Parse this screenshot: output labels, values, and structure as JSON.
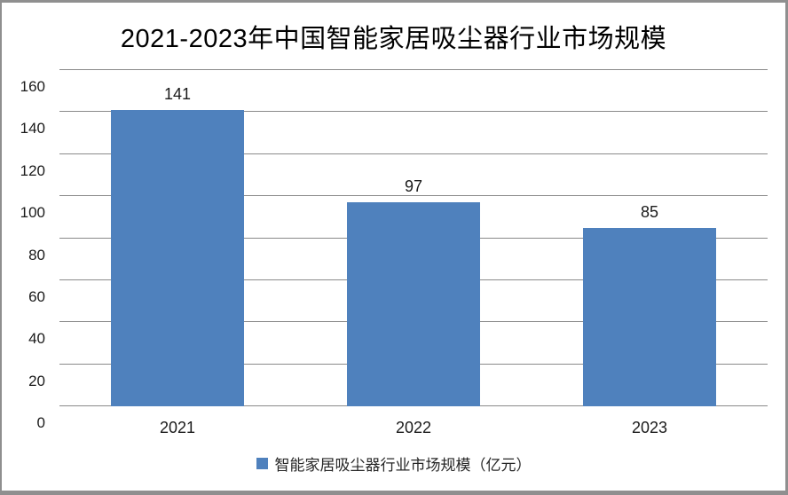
{
  "chart_data": {
    "type": "bar",
    "title": "2021-2023年中国智能家居吸尘器行业市场规模",
    "categories": [
      "2021",
      "2022",
      "2023"
    ],
    "series": [
      {
        "name": "智能家居吸尘器行业市场规模（亿元）",
        "values": [
          141,
          97,
          85
        ]
      }
    ],
    "xlabel": "",
    "ylabel": "",
    "ylim": [
      0,
      160
    ],
    "yticks": [
      0,
      20,
      40,
      60,
      80,
      100,
      120,
      140,
      160
    ],
    "grid": true,
    "legend_position": "bottom",
    "colors": {
      "bar": "#4F81BD",
      "gridline": "#8a8a8a",
      "axis": "#8a8a8a",
      "text": "#1a1a1a",
      "frame_border": "#8f8f8f",
      "background": "#ffffff"
    }
  }
}
